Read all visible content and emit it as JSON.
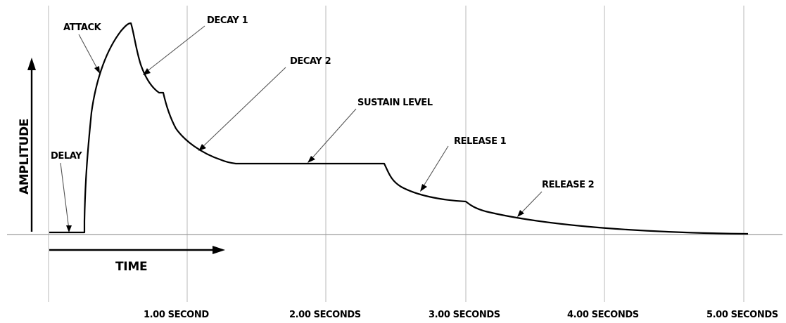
{
  "stages": {
    "delay": "DELAY",
    "attack": "ATTACK",
    "decay1": "DECAY 1",
    "decay2": "DECAY 2",
    "sustain": "SUSTAIN LEVEL",
    "release1": "RELEASE 1",
    "release2": "RELEASE 2"
  },
  "axes": {
    "y_label": "AMPLITUDE",
    "x_label": "TIME"
  },
  "time_ticks": [
    {
      "label": "1.00 SECOND"
    },
    {
      "label": "2.00 SECONDS"
    },
    {
      "label": "3.00 SECONDS"
    },
    {
      "label": "4.00 SECONDS"
    },
    {
      "label": "5.00 SECONDS"
    }
  ]
}
